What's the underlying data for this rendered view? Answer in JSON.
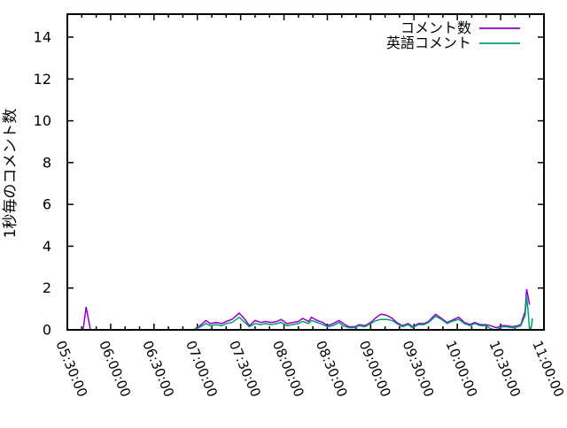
{
  "window": {
    "background": "#ffffff",
    "axis_color": "#000000"
  },
  "legend": {
    "position": "top-right-inside",
    "items": [
      {
        "label": "コメント数",
        "color": "#9400d3"
      },
      {
        "label": "英語コメント",
        "color": "#009e73"
      }
    ]
  },
  "chart_data": {
    "type": "line",
    "title": "",
    "xlabel": "",
    "ylabel": "1秒毎のコメント数",
    "ylim": [
      0,
      15.1
    ],
    "yticks": [
      0,
      2,
      4,
      6,
      8,
      10,
      12,
      14
    ],
    "x_axis_kind": "time",
    "x_start_label": "05:30:00",
    "x_end_label": "11:00:00",
    "xlim_minutes": [
      0,
      330
    ],
    "x_major_step_minutes": 30,
    "x_minor_step_minutes": 10,
    "xtick_labels": [
      "05:30:00",
      "06:00:00",
      "06:30:00",
      "07:00:00",
      "07:30:00",
      "08:00:00",
      "08:30:00",
      "09:00:00",
      "09:30:00",
      "10:00:00",
      "10:30:00",
      "11:00:00"
    ],
    "grid": false,
    "legend_position": "top-right",
    "series": [
      {
        "name": "コメント数",
        "color": "#9400d3",
        "points": [
          [
            11,
            0
          ],
          [
            13,
            1.1
          ],
          [
            16,
            0
          ],
          [
            87,
            0
          ],
          [
            91,
            0.15
          ],
          [
            96,
            0.45
          ],
          [
            99,
            0.3
          ],
          [
            103,
            0.35
          ],
          [
            107,
            0.3
          ],
          [
            110,
            0.4
          ],
          [
            114,
            0.5
          ],
          [
            119,
            0.8
          ],
          [
            123,
            0.5
          ],
          [
            126,
            0.2
          ],
          [
            130,
            0.45
          ],
          [
            134,
            0.35
          ],
          [
            137,
            0.4
          ],
          [
            141,
            0.35
          ],
          [
            145,
            0.4
          ],
          [
            148,
            0.5
          ],
          [
            152,
            0.3
          ],
          [
            156,
            0.35
          ],
          [
            160,
            0.4
          ],
          [
            163,
            0.55
          ],
          [
            167,
            0.4
          ],
          [
            169,
            0.6
          ],
          [
            173,
            0.45
          ],
          [
            177,
            0.35
          ],
          [
            180,
            0.2
          ],
          [
            184,
            0.3
          ],
          [
            188,
            0.45
          ],
          [
            191,
            0.3
          ],
          [
            195,
            0.15
          ],
          [
            199,
            0.15
          ],
          [
            202,
            0.25
          ],
          [
            206,
            0.2
          ],
          [
            210,
            0.35
          ],
          [
            214,
            0.6
          ],
          [
            217,
            0.75
          ],
          [
            221,
            0.7
          ],
          [
            225,
            0.55
          ],
          [
            228,
            0.35
          ],
          [
            232,
            0.2
          ],
          [
            236,
            0.3
          ],
          [
            239,
            0.15
          ],
          [
            243,
            0.3
          ],
          [
            247,
            0.3
          ],
          [
            250,
            0.4
          ],
          [
            255,
            0.75
          ],
          [
            259,
            0.55
          ],
          [
            263,
            0.35
          ],
          [
            266,
            0.45
          ],
          [
            271,
            0.6
          ],
          [
            275,
            0.35
          ],
          [
            279,
            0.25
          ],
          [
            282,
            0.35
          ],
          [
            286,
            0.25
          ],
          [
            290,
            0.25
          ],
          [
            293,
            0.2
          ],
          [
            297,
            0.1
          ],
          [
            301,
            0.2
          ],
          [
            304,
            0.2
          ],
          [
            308,
            0.15
          ],
          [
            312,
            0.2
          ],
          [
            314,
            0.25
          ],
          [
            317,
            0.9
          ],
          [
            318,
            1.95
          ],
          [
            319,
            1.6
          ],
          [
            320,
            1.2
          ]
        ]
      },
      {
        "name": "英語コメント",
        "color": "#009e73",
        "points": [
          [
            87,
            0
          ],
          [
            91,
            0.1
          ],
          [
            96,
            0.3
          ],
          [
            99,
            0.2
          ],
          [
            103,
            0.25
          ],
          [
            107,
            0.2
          ],
          [
            110,
            0.3
          ],
          [
            114,
            0.35
          ],
          [
            119,
            0.6
          ],
          [
            123,
            0.35
          ],
          [
            126,
            0.15
          ],
          [
            130,
            0.3
          ],
          [
            134,
            0.25
          ],
          [
            137,
            0.3
          ],
          [
            141,
            0.25
          ],
          [
            145,
            0.3
          ],
          [
            148,
            0.35
          ],
          [
            152,
            0.2
          ],
          [
            156,
            0.25
          ],
          [
            160,
            0.3
          ],
          [
            163,
            0.4
          ],
          [
            167,
            0.3
          ],
          [
            169,
            0.45
          ],
          [
            173,
            0.35
          ],
          [
            177,
            0.25
          ],
          [
            180,
            0.15
          ],
          [
            184,
            0.2
          ],
          [
            188,
            0.35
          ],
          [
            191,
            0.2
          ],
          [
            195,
            0.1
          ],
          [
            199,
            0.1
          ],
          [
            202,
            0.2
          ],
          [
            206,
            0.15
          ],
          [
            210,
            0.3
          ],
          [
            214,
            0.45
          ],
          [
            217,
            0.5
          ],
          [
            221,
            0.5
          ],
          [
            225,
            0.45
          ],
          [
            228,
            0.3
          ],
          [
            232,
            0.15
          ],
          [
            236,
            0.25
          ],
          [
            239,
            0.1
          ],
          [
            243,
            0.25
          ],
          [
            247,
            0.25
          ],
          [
            250,
            0.35
          ],
          [
            255,
            0.65
          ],
          [
            259,
            0.5
          ],
          [
            263,
            0.3
          ],
          [
            266,
            0.4
          ],
          [
            271,
            0.5
          ],
          [
            275,
            0.3
          ],
          [
            279,
            0.2
          ],
          [
            282,
            0.3
          ],
          [
            286,
            0.2
          ],
          [
            290,
            0.2
          ],
          [
            293,
            0.05
          ],
          [
            297,
            0
          ],
          [
            301,
            0.15
          ],
          [
            304,
            0.15
          ],
          [
            308,
            0.1
          ],
          [
            312,
            0.15
          ],
          [
            314,
            0.2
          ],
          [
            317,
            0.7
          ],
          [
            318,
            1.6
          ],
          [
            319,
            0.9
          ],
          [
            320,
            0
          ],
          [
            321,
            0
          ],
          [
            322,
            0.55
          ]
        ]
      }
    ]
  }
}
